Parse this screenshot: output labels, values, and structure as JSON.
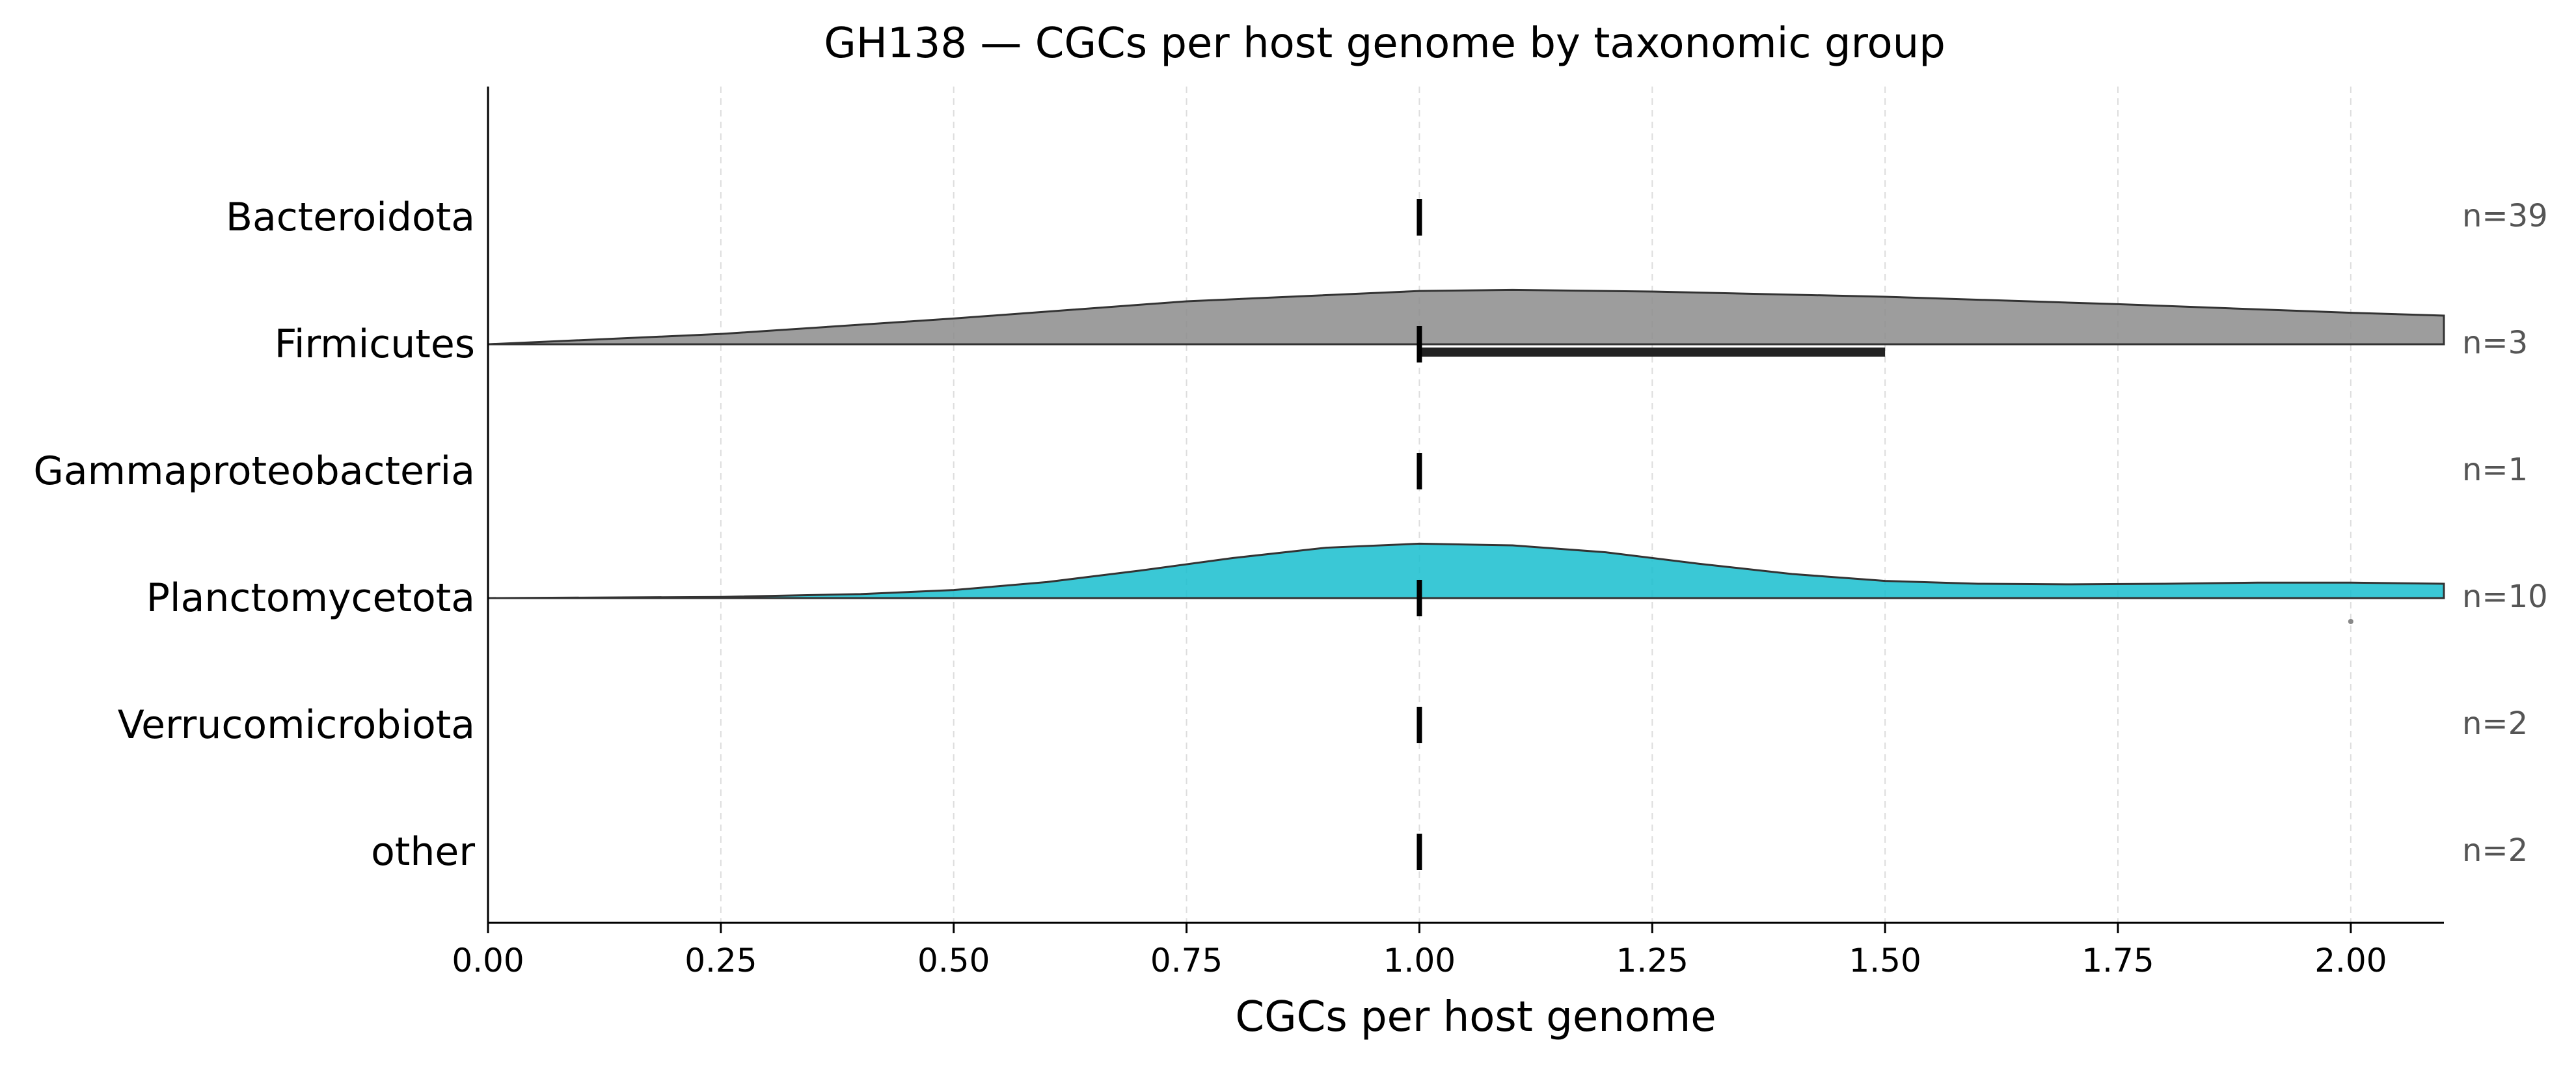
{
  "chart_data": {
    "type": "violin",
    "title": "GH138 — CGCs per host genome by taxonomic group",
    "xlabel": "CGCs per host genome",
    "ylabel": "",
    "xlim": [
      0.0,
      2.1
    ],
    "xticks": [
      0.0,
      0.25,
      0.5,
      0.75,
      1.0,
      1.25,
      1.5,
      1.75,
      2.0
    ],
    "xtick_labels": [
      "0.00",
      "0.25",
      "0.50",
      "0.75",
      "1.00",
      "1.25",
      "1.50",
      "1.75",
      "2.00"
    ],
    "grid": "vertical dashed",
    "categories": [
      "Bacteroidota",
      "Firmicutes",
      "Gammaproteobacteria",
      "Planctomycetota",
      "Verrucomicrobiota",
      "other"
    ],
    "counts": [
      "n=39",
      "n=3",
      "n=1",
      "n=10",
      "n=2",
      "n=2"
    ],
    "medians": [
      1.0,
      1.0,
      1.0,
      1.0,
      1.0,
      1.0
    ],
    "iqr": [
      null,
      [
        1.0,
        1.5
      ],
      null,
      null,
      null,
      null
    ],
    "outliers": [
      [],
      [],
      [],
      [
        2.0
      ],
      [],
      []
    ],
    "densities": [
      null,
      {
        "color": "#8c8c8c",
        "x": [
          0.0,
          0.25,
          0.5,
          0.75,
          1.0,
          1.1,
          1.25,
          1.5,
          1.75,
          2.0,
          2.1
        ],
        "y": [
          0.0,
          0.18,
          0.45,
          0.75,
          0.93,
          0.95,
          0.92,
          0.83,
          0.7,
          0.55,
          0.5
        ]
      },
      null,
      {
        "color": "#17becf",
        "x": [
          0.0,
          0.25,
          0.4,
          0.5,
          0.6,
          0.7,
          0.8,
          0.9,
          1.0,
          1.1,
          1.2,
          1.3,
          1.4,
          1.5,
          1.6,
          1.7,
          1.8,
          1.9,
          2.0,
          2.1
        ],
        "y": [
          0.0,
          0.02,
          0.07,
          0.14,
          0.28,
          0.48,
          0.7,
          0.88,
          0.95,
          0.92,
          0.8,
          0.6,
          0.42,
          0.3,
          0.25,
          0.24,
          0.25,
          0.27,
          0.27,
          0.25
        ]
      },
      null,
      null
    ]
  }
}
